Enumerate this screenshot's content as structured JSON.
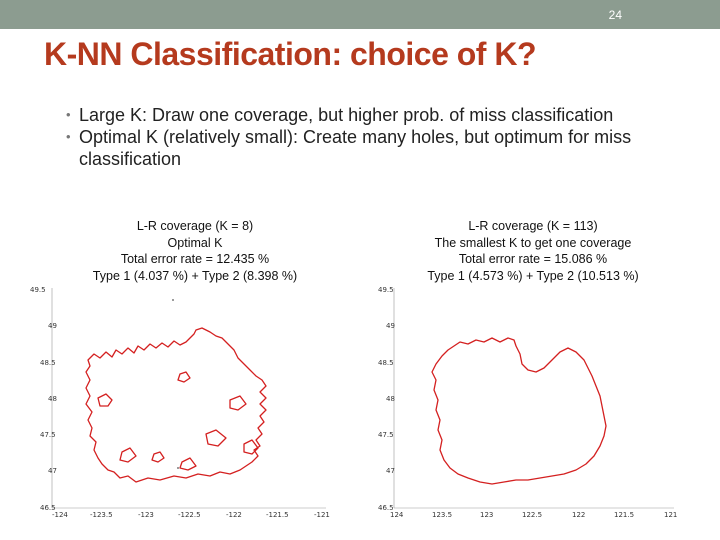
{
  "slide_number": "24",
  "title": "K-NN Classification: choice of K?",
  "bullets": [
    "Large K: Draw one coverage, but higher prob. of miss classification",
    "Optimal K (relatively small): Create many holes, but optimum for miss classification"
  ],
  "colors": {
    "top_bar": "#8c9c90",
    "title": "#b53a1e",
    "contour": "#d42020"
  },
  "panels": [
    {
      "caption": [
        "L-R coverage (K = 8)",
        "Optimal K",
        "Total error rate = 12.435 %",
        "Type 1 (4.037 %) + Type 2 (8.398 %)"
      ],
      "y_ticks": [
        "49.5",
        "49",
        "48.5",
        "48",
        "47.5",
        "47",
        "46.5"
      ],
      "x_ticks": [
        "-124",
        "-123.5",
        "-123",
        "-122.5",
        "-122",
        "-121.5",
        "-121"
      ]
    },
    {
      "caption": [
        "L-R coverage (K = 113)",
        "The smallest K to get one coverage",
        "Total error rate = 15.086 %",
        "Type 1 (4.573 %) + Type 2 (10.513 %)"
      ],
      "y_ticks": [
        "49.5",
        "49",
        "48.5",
        "48",
        "47.5",
        "47",
        "46.5"
      ],
      "x_ticks": [
        "124",
        "123.5",
        "123",
        "122.5",
        "122",
        "121.5",
        "121"
      ]
    }
  ]
}
